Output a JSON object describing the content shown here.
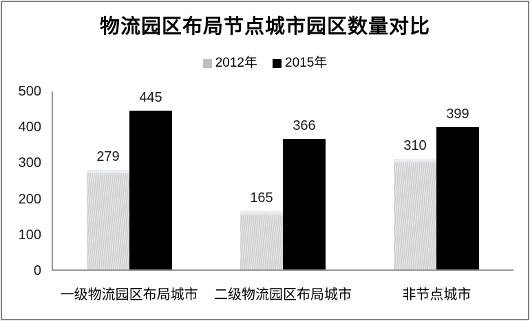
{
  "frame": {
    "border_color": "#828282"
  },
  "chart_data": {
    "type": "bar",
    "title": "物流园区布局节点城市园区数量对比",
    "categories": [
      "一级物流园区布局城市",
      "二级物流园区布局城市",
      "非节点城市"
    ],
    "series": [
      {
        "name": "2012年",
        "legend_color": "#bfbfbf",
        "fill": "pattern-gray",
        "values": [
          279,
          165,
          310
        ]
      },
      {
        "name": "2015年",
        "legend_color": "#000000",
        "fill": "solid-black",
        "values": [
          445,
          366,
          399
        ]
      }
    ],
    "ylim": [
      0,
      500
    ],
    "yticks": [
      0,
      100,
      200,
      300,
      400,
      500
    ],
    "xlabel": "",
    "ylabel": "",
    "grid": false,
    "legend_position": "top",
    "value_labels_shown": true,
    "axis_color": "#969696",
    "text_color": "#1a1a1a"
  }
}
